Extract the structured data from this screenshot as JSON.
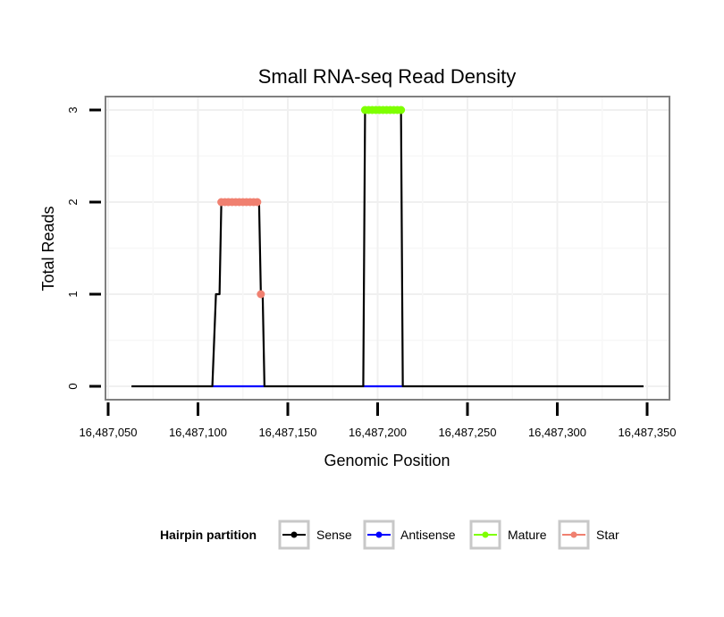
{
  "chart_data": {
    "type": "line",
    "title": "Small RNA-seq Read Density",
    "xlabel": "Genomic Position",
    "ylabel": "Total Reads",
    "xlim": [
      16487050,
      16487350
    ],
    "ylim": [
      0,
      3
    ],
    "x_ticks": [
      16487050,
      16487100,
      16487150,
      16487200,
      16487250,
      16487300,
      16487350
    ],
    "x_tick_labels": [
      "16,487,050",
      "16,487,100",
      "16,487,150",
      "16,487,200",
      "16,487,250",
      "16,487,300",
      "16,487,350"
    ],
    "y_ticks": [
      0,
      1,
      2,
      3
    ],
    "y_tick_labels": [
      "0",
      "1",
      "2",
      "3"
    ],
    "grid": true,
    "legend": {
      "title": "Hairpin partition",
      "position": "bottom",
      "entries": [
        "Sense",
        "Antisense",
        "Mature",
        "Star"
      ]
    },
    "series": [
      {
        "name": "Sense",
        "color": "#000000",
        "x": [
          16487063,
          16487108,
          16487110,
          16487111,
          16487112,
          16487113,
          16487134,
          16487135,
          16487136,
          16487137,
          16487192,
          16487193,
          16487213,
          16487214,
          16487348
        ],
        "y": [
          0,
          0,
          1,
          1,
          1,
          2,
          2,
          1,
          1,
          0,
          0,
          3,
          3,
          0,
          0
        ]
      },
      {
        "name": "Antisense",
        "color": "#0000ff",
        "x": [
          16487108,
          16487137,
          16487192,
          16487214
        ],
        "y": [
          0,
          0,
          0,
          0
        ],
        "segments": [
          [
            0,
            1
          ],
          [
            2,
            3
          ]
        ]
      },
      {
        "name": "Mature",
        "color": "#7fff00",
        "x": [
          16487193,
          16487195,
          16487197,
          16487199,
          16487201,
          16487203,
          16487205,
          16487207,
          16487209,
          16487211,
          16487213
        ],
        "y": [
          3,
          3,
          3,
          3,
          3,
          3,
          3,
          3,
          3,
          3,
          3
        ]
      },
      {
        "name": "Star",
        "color": "#f08070",
        "x": [
          16487113,
          16487115,
          16487117,
          16487119,
          16487121,
          16487123,
          16487125,
          16487127,
          16487129,
          16487131,
          16487133,
          16487135
        ],
        "y": [
          2,
          2,
          2,
          2,
          2,
          2,
          2,
          2,
          2,
          2,
          2,
          1
        ]
      }
    ]
  }
}
